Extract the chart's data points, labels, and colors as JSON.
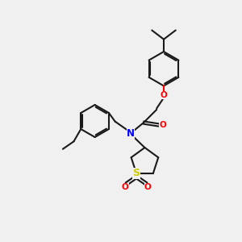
{
  "bg_color": "#f0f0f0",
  "bond_color": "#1a1a1a",
  "N_color": "#0000ff",
  "O_color": "#ff0000",
  "S_color": "#cccc00",
  "line_width": 1.5,
  "dbo": 0.035,
  "figsize": [
    3.0,
    3.0
  ],
  "dpi": 100,
  "xlim": [
    0,
    10
  ],
  "ylim": [
    0,
    10
  ]
}
